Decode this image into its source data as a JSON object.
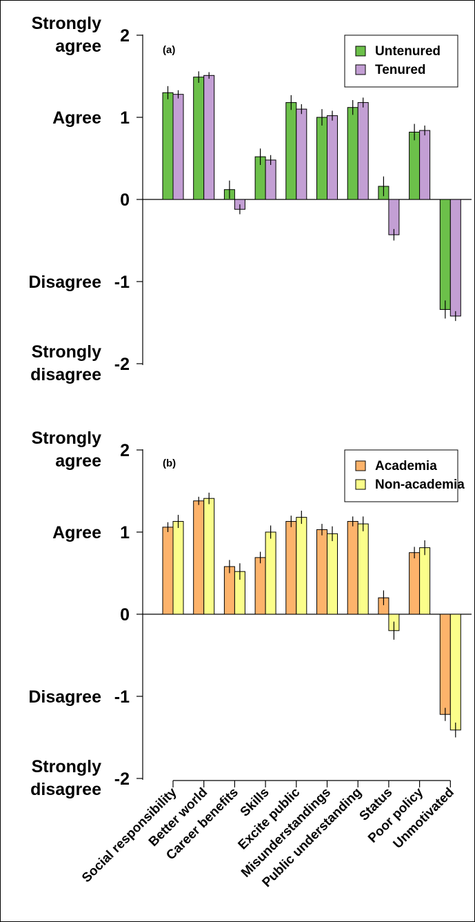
{
  "chart_data": [
    {
      "type": "bar",
      "panel_label": "(a)",
      "categories": [
        "Social responsibility",
        "Better world",
        "Career benefits",
        "Skills",
        "Excite public",
        "Misunderstandings",
        "Public understanding",
        "Status",
        "Poor policy",
        "Unmotivated"
      ],
      "series": [
        {
          "name": "Untenured",
          "color": "#6cc04a",
          "values": [
            1.3,
            1.49,
            0.12,
            0.52,
            1.18,
            1.0,
            1.12,
            0.16,
            0.82,
            -1.34
          ],
          "errors": [
            0.08,
            0.07,
            0.11,
            0.1,
            0.09,
            0.1,
            0.09,
            0.12,
            0.1,
            0.11
          ]
        },
        {
          "name": "Tenured",
          "color": "#c39fd4",
          "values": [
            1.28,
            1.51,
            -0.12,
            0.48,
            1.1,
            1.02,
            1.18,
            -0.43,
            0.84,
            -1.42
          ],
          "errors": [
            0.05,
            0.04,
            0.06,
            0.06,
            0.06,
            0.06,
            0.06,
            0.07,
            0.06,
            0.06
          ]
        }
      ],
      "ylim": [
        -2,
        2
      ],
      "yticks": [
        -2,
        -1,
        0,
        1,
        2
      ],
      "ytick_labels": [
        "-2",
        "-1",
        "0",
        "1",
        "2"
      ],
      "level_labels": [
        {
          "value": 2,
          "lines": [
            "Strongly",
            "agree"
          ]
        },
        {
          "value": 1,
          "lines": [
            "Agree"
          ]
        },
        {
          "value": -1,
          "lines": [
            "Disagree"
          ]
        },
        {
          "value": -2,
          "lines": [
            "Strongly",
            "disagree"
          ]
        }
      ],
      "legend_position": "top-right",
      "grid": false
    },
    {
      "type": "bar",
      "panel_label": "(b)",
      "categories": [
        "Social responsibility",
        "Better world",
        "Career benefits",
        "Skills",
        "Excite public",
        "Misunderstandings",
        "Public understanding",
        "Status",
        "Poor policy",
        "Unmotivated"
      ],
      "series": [
        {
          "name": "Academia",
          "color": "#fdb36b",
          "values": [
            1.06,
            1.38,
            0.58,
            0.69,
            1.13,
            1.03,
            1.13,
            0.2,
            0.75,
            -1.22
          ],
          "errors": [
            0.06,
            0.05,
            0.08,
            0.07,
            0.07,
            0.07,
            0.06,
            0.09,
            0.07,
            0.08
          ]
        },
        {
          "name": "Non-academia",
          "color": "#fbfe8a",
          "values": [
            1.13,
            1.41,
            0.52,
            1.0,
            1.18,
            0.98,
            1.1,
            -0.2,
            0.81,
            -1.41
          ],
          "errors": [
            0.08,
            0.07,
            0.1,
            0.08,
            0.08,
            0.09,
            0.09,
            0.11,
            0.09,
            0.09
          ]
        }
      ],
      "ylim": [
        -2,
        2
      ],
      "yticks": [
        -2,
        -1,
        0,
        1,
        2
      ],
      "ytick_labels": [
        "-2",
        "-1",
        "0",
        "1",
        "2"
      ],
      "level_labels": [
        {
          "value": 2,
          "lines": [
            "Strongly",
            "agree"
          ]
        },
        {
          "value": 1,
          "lines": [
            "Agree"
          ]
        },
        {
          "value": -1,
          "lines": [
            "Disagree"
          ]
        },
        {
          "value": -2,
          "lines": [
            "Strongly",
            "disagree"
          ]
        }
      ],
      "legend_position": "top-right",
      "grid": false
    }
  ]
}
